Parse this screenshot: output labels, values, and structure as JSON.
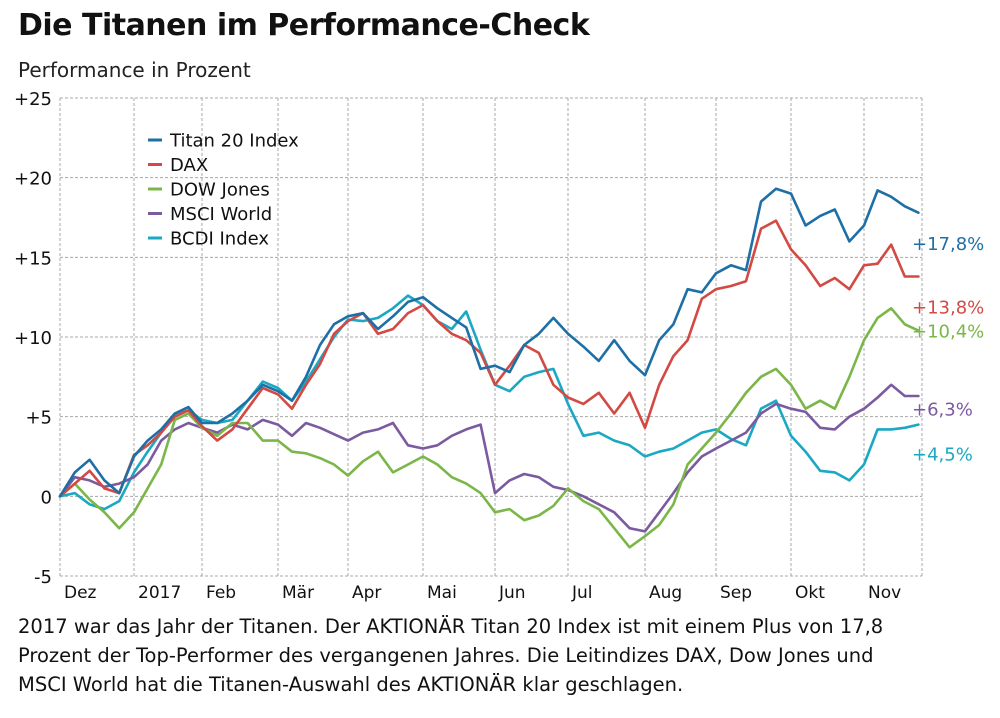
{
  "title": "Die Titanen im Performance-Check",
  "subtitle": "Performance in Prozent",
  "caption": [
    "2017 war das Jahr der Titanen. Der AKTIONÄR Titan 20 Index ist mit einem Plus von 17,8",
    "Prozent der Top-Performer des vergangenen Jahres. Die Leitindizes DAX, Dow Jones und",
    "MSCI World hat die Titanen-Auswahl des AKTIONÄR klar geschlagen."
  ],
  "chart_data": {
    "type": "line",
    "title": "Die Titanen im Performance-Check",
    "ylabel": "Performance in Prozent",
    "xlabel": "",
    "ylim": [
      -5,
      25
    ],
    "yticks": [
      25,
      20,
      15,
      10,
      5,
      0,
      -5
    ],
    "ytick_labels": [
      "+25",
      "+20",
      "+15",
      "+10",
      "+5",
      "0",
      "-5"
    ],
    "xlim": [
      0,
      12
    ],
    "xticks": [
      0,
      1,
      2,
      3,
      4,
      5,
      6,
      7,
      8,
      9,
      10,
      11
    ],
    "xtick_labels": [
      "Dez",
      "2017",
      "Feb",
      "Mär",
      "Apr",
      "Mai",
      "Jun",
      "Jul",
      "Aug",
      "Sep",
      "Okt",
      "Nov"
    ],
    "grid": true,
    "legend_position": "top-left",
    "x": [
      0,
      0.2,
      0.4,
      0.6,
      0.8,
      1.0,
      1.2,
      1.4,
      1.6,
      1.8,
      2.0,
      2.2,
      2.4,
      2.6,
      2.8,
      3.0,
      3.2,
      3.4,
      3.6,
      3.8,
      4.0,
      4.2,
      4.4,
      4.6,
      4.8,
      5.0,
      5.2,
      5.4,
      5.6,
      5.8,
      6.0,
      6.2,
      6.4,
      6.6,
      6.8,
      7.0,
      7.2,
      7.4,
      7.6,
      7.8,
      8.0,
      8.2,
      8.4,
      8.6,
      8.8,
      9.0,
      9.2,
      9.4,
      9.6,
      9.8,
      10.0,
      10.2,
      10.4,
      10.6,
      10.8,
      11.0,
      11.2,
      11.4,
      11.6,
      11.8
    ],
    "series": [
      {
        "name": "Titan 20 Index",
        "color": "#1d6fa5",
        "end_label": "+17,8%",
        "values": [
          0,
          1.5,
          2.3,
          1.0,
          0.2,
          2.5,
          3.5,
          4.2,
          5.2,
          5.6,
          4.6,
          4.6,
          5.2,
          6.0,
          7.0,
          6.6,
          6.0,
          7.5,
          9.5,
          10.8,
          11.3,
          11.5,
          10.5,
          11.3,
          12.2,
          12.5,
          11.8,
          11.2,
          10.6,
          8.0,
          8.2,
          7.8,
          9.5,
          10.2,
          11.2,
          10.2,
          9.4,
          8.5,
          9.8,
          8.5,
          7.6,
          9.8,
          10.8,
          13.0,
          12.8,
          14.0,
          14.5,
          14.2,
          18.5,
          19.3,
          19.0,
          17.0,
          17.6,
          18.0,
          16.0,
          17.0,
          19.2,
          18.8,
          18.2,
          17.8
        ]
      },
      {
        "name": "DAX",
        "color": "#d24a43",
        "end_label": "+13,8%",
        "values": [
          0,
          0.8,
          1.6,
          0.5,
          0.2,
          2.6,
          3.2,
          4.0,
          5.0,
          5.4,
          4.4,
          3.5,
          4.2,
          5.5,
          6.8,
          6.4,
          5.5,
          7.0,
          8.3,
          10.2,
          11.0,
          11.5,
          10.2,
          10.5,
          11.5,
          12.0,
          11.0,
          10.2,
          9.8,
          9.0,
          7.0,
          8.2,
          9.5,
          9.0,
          7.0,
          6.2,
          5.8,
          6.5,
          5.2,
          6.5,
          4.3,
          7.0,
          8.8,
          9.8,
          12.4,
          13.0,
          13.2,
          13.5,
          16.8,
          17.3,
          15.5,
          14.5,
          13.2,
          13.7,
          13.0,
          14.5,
          14.6,
          15.8,
          13.8,
          13.8
        ]
      },
      {
        "name": "DOW Jones",
        "color": "#7ab648",
        "end_label": "+10,4%",
        "values": [
          0,
          0.8,
          -0.2,
          -1.0,
          -2.0,
          -1.0,
          0.5,
          2.0,
          4.8,
          5.2,
          4.3,
          3.8,
          4.6,
          4.6,
          3.5,
          3.5,
          2.8,
          2.7,
          2.4,
          2.0,
          1.3,
          2.2,
          2.8,
          1.5,
          2.0,
          2.5,
          2.0,
          1.2,
          0.8,
          0.2,
          -1.0,
          -0.8,
          -1.5,
          -1.2,
          -0.6,
          0.5,
          -0.3,
          -0.8,
          -2.0,
          -3.2,
          -2.5,
          -1.8,
          -0.5,
          2.0,
          3.0,
          4.0,
          5.2,
          6.5,
          7.5,
          8.0,
          7.0,
          5.5,
          6.0,
          5.5,
          7.5,
          9.8,
          11.2,
          11.8,
          10.8,
          10.4
        ]
      },
      {
        "name": "MSCI World",
        "color": "#7b5aa0",
        "end_label": "+6,3%",
        "values": [
          0,
          1.2,
          1.0,
          0.6,
          0.8,
          1.2,
          2.0,
          3.5,
          4.2,
          4.6,
          4.3,
          4.0,
          4.5,
          4.2,
          4.8,
          4.5,
          3.8,
          4.6,
          4.3,
          3.9,
          3.5,
          4.0,
          4.2,
          4.6,
          3.2,
          3.0,
          3.2,
          3.8,
          4.2,
          4.5,
          0.2,
          1.0,
          1.4,
          1.2,
          0.6,
          0.4,
          0.0,
          -0.5,
          -1.0,
          -2.0,
          -2.2,
          -1.0,
          0.2,
          1.5,
          2.5,
          3.0,
          3.5,
          4.0,
          5.2,
          5.8,
          5.5,
          5.3,
          4.3,
          4.2,
          5.0,
          5.5,
          6.2,
          7.0,
          6.3,
          6.3
        ]
      },
      {
        "name": "BCDI Index",
        "color": "#1ba8c2",
        "end_label": "+4,5%",
        "values": [
          0,
          0.2,
          -0.5,
          -0.8,
          -0.3,
          1.5,
          2.8,
          4.0,
          5.1,
          5.4,
          4.8,
          4.6,
          4.8,
          6.0,
          7.2,
          6.8,
          6.0,
          7.2,
          8.6,
          10.0,
          11.1,
          11.0,
          11.2,
          11.8,
          12.6,
          12.0,
          11.0,
          10.5,
          11.6,
          9.2,
          7.0,
          6.6,
          7.5,
          7.8,
          8.0,
          5.8,
          3.8,
          4.0,
          3.5,
          3.2,
          2.5,
          2.8,
          3.0,
          3.5,
          4.0,
          4.2,
          3.6,
          3.2,
          5.5,
          6.0,
          3.8,
          2.8,
          1.6,
          1.5,
          1.0,
          2.0,
          4.2,
          4.2,
          4.3,
          4.5
        ]
      }
    ]
  }
}
